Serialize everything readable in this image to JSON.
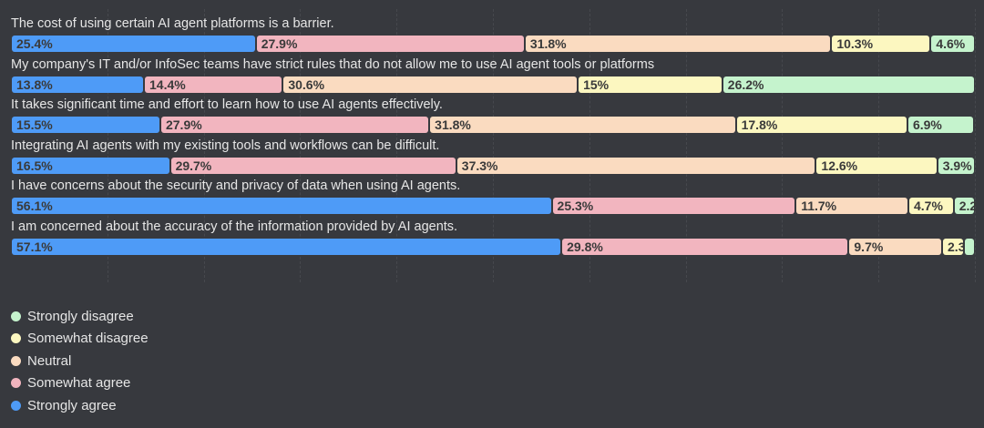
{
  "chart_data": {
    "type": "bar",
    "orientation": "horizontal-stacked",
    "unit": "%",
    "xlim": [
      0,
      100
    ],
    "grid": true,
    "legend_placement": "bottom-left",
    "categories": [
      "The cost of using certain AI agent platforms is a barrier.",
      "My company's IT and/or InfoSec teams have strict rules that do not allow me to use AI agent tools or platforms",
      "It takes significant time and effort to learn how to use AI agents effectively.",
      "Integrating AI agents with my existing tools and workflows can be difficult.",
      "I have concerns about the security and privacy of data when using AI agents.",
      "I am concerned about the accuracy of the information provided by AI agents."
    ],
    "series": [
      {
        "name": "Strongly agree",
        "color": "#4e9bf7",
        "values": [
          25.4,
          13.8,
          15.5,
          16.5,
          56.1,
          57.1
        ],
        "labels": [
          "25.4%",
          "13.8%",
          "15.5%",
          "16.5%",
          "56.1%",
          "57.1%"
        ]
      },
      {
        "name": "Somewhat agree",
        "color": "#f2b5bf",
        "values": [
          27.9,
          14.4,
          27.9,
          29.7,
          25.3,
          29.8
        ],
        "labels": [
          "27.9%",
          "14.4%",
          "27.9%",
          "29.7%",
          "25.3%",
          "29.8%"
        ]
      },
      {
        "name": "Neutral",
        "color": "#fadbc0",
        "values": [
          31.8,
          30.6,
          31.8,
          37.3,
          11.7,
          9.7
        ],
        "labels": [
          "31.8%",
          "30.6%",
          "31.8%",
          "37.3%",
          "11.7%",
          "9.7%"
        ]
      },
      {
        "name": "Somewhat disagree",
        "color": "#fcf7c0",
        "values": [
          10.3,
          15,
          17.8,
          12.6,
          4.7,
          2.3
        ],
        "labels": [
          "10.3%",
          "15%",
          "17.8%",
          "12.6%",
          "4.7%",
          "2.3"
        ]
      },
      {
        "name": "Strongly disagree",
        "color": "#c5f3cd",
        "values": [
          4.6,
          26.2,
          6.9,
          3.9,
          2.2,
          1.1
        ],
        "labels": [
          "4.6%",
          "26.2%",
          "6.9%",
          "3.9%",
          "2.2",
          ""
        ]
      }
    ],
    "legend_order": [
      "Strongly disagree",
      "Somewhat disagree",
      "Neutral",
      "Somewhat agree",
      "Strongly agree"
    ]
  }
}
